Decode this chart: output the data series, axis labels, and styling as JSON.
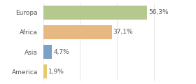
{
  "categories": [
    "Europa",
    "Africa",
    "Asia",
    "America"
  ],
  "values": [
    56.3,
    37.1,
    4.7,
    1.9
  ],
  "labels": [
    "56,3%",
    "37,1%",
    "4,7%",
    "1,9%"
  ],
  "bar_colors": [
    "#b5c98e",
    "#e8b882",
    "#7b9fc7",
    "#e8c96e"
  ],
  "background_color": "#ffffff",
  "xlim": [
    0,
    70
  ],
  "label_fontsize": 6.5,
  "tick_fontsize": 6.5,
  "bar_height": 0.72
}
